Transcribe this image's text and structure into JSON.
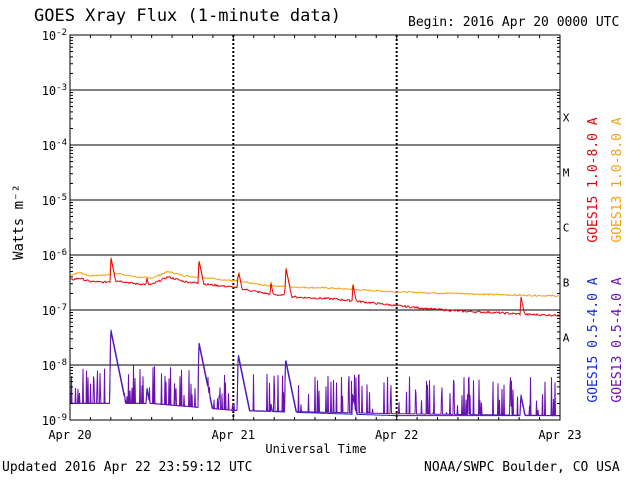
{
  "header": {
    "title": "GOES Xray Flux (1-minute data)",
    "begin": "Begin:  2016 Apr 20 0000 UTC"
  },
  "footer": {
    "updated": "Updated 2016 Apr 22 23:59:12 UTC",
    "credit": "NOAA/SWPC Boulder, CO USA"
  },
  "chart_data": {
    "type": "line",
    "title": "GOES Xray Flux (1-minute data)",
    "xlabel": "Universal Time",
    "ylabel": "Watts m⁻²",
    "yscale": "log",
    "ylim": [
      1e-09,
      0.01
    ],
    "xlim_days": [
      0,
      3
    ],
    "x_ticks": [
      {
        "day": 0,
        "label": "Apr 20"
      },
      {
        "day": 1,
        "label": "Apr 21"
      },
      {
        "day": 2,
        "label": "Apr 22"
      },
      {
        "day": 3,
        "label": "Apr 23"
      }
    ],
    "y_ticks": [
      {
        "exp": -9,
        "label": "10",
        "sup": "-9"
      },
      {
        "exp": -8,
        "label": "10",
        "sup": "-8"
      },
      {
        "exp": -7,
        "label": "10",
        "sup": "-7"
      },
      {
        "exp": -6,
        "label": "10",
        "sup": "-6"
      },
      {
        "exp": -5,
        "label": "10",
        "sup": "-5"
      },
      {
        "exp": -4,
        "label": "10",
        "sup": "-4"
      },
      {
        "exp": -3,
        "label": "10",
        "sup": "-3"
      },
      {
        "exp": -2,
        "label": "10",
        "sup": "-2"
      }
    ],
    "flare_classes": [
      {
        "label": "A",
        "band": [
          -8,
          -7
        ]
      },
      {
        "label": "B",
        "band": [
          -7,
          -6
        ]
      },
      {
        "label": "C",
        "band": [
          -6,
          -5
        ]
      },
      {
        "label": "M",
        "band": [
          -5,
          -4
        ]
      },
      {
        "label": "X",
        "band": [
          -4,
          -3
        ]
      }
    ],
    "grid": true,
    "legend_position": "right, rotated",
    "series": [
      {
        "name": "GOES15 1.0-8.0 A",
        "color": "#e8000b",
        "x": [
          0,
          0.06,
          0.12,
          0.2,
          0.3,
          0.4,
          0.5,
          0.6,
          0.7,
          0.85,
          1.0,
          1.2,
          1.4,
          1.6,
          1.8,
          2.0,
          2.2,
          2.4,
          2.6,
          2.8,
          3.0
        ],
        "y": [
          3.5e-07,
          3.8e-07,
          3.3e-07,
          3.2e-07,
          3.4e-07,
          3e-07,
          2.9e-07,
          4e-07,
          3.3e-07,
          2.9e-07,
          2.6e-07,
          2e-07,
          1.7e-07,
          1.6e-07,
          1.4e-07,
          1.2e-07,
          1.05e-07,
          9.5e-08,
          9e-08,
          8.3e-08,
          8e-08
        ]
      },
      {
        "name": "GOES13 1.0-8.0 A",
        "color": "#f5a20a",
        "x": [
          0,
          0.06,
          0.12,
          0.2,
          0.3,
          0.4,
          0.5,
          0.6,
          0.7,
          0.85,
          1.0,
          1.2,
          1.4,
          1.6,
          1.8,
          2.0,
          2.2,
          2.4,
          2.6,
          2.8,
          3.0
        ],
        "y": [
          4.3e-07,
          4.8e-07,
          4.2e-07,
          4.3e-07,
          4.6e-07,
          4e-07,
          3.8e-07,
          5e-07,
          4.2e-07,
          3.8e-07,
          3.4e-07,
          2.8e-07,
          2.6e-07,
          2.5e-07,
          2.3e-07,
          2.15e-07,
          2.05e-07,
          2e-07,
          1.9e-07,
          1.85e-07,
          1.8e-07
        ]
      },
      {
        "name": "GOES15 0.5-4.0 A",
        "color": "#1028e0",
        "x": [
          0,
          0.2,
          0.5,
          1.0,
          2.0,
          3.0
        ],
        "y": [
          2e-09,
          2e-09,
          2e-09,
          1.5e-09,
          1.2e-09,
          1.2e-09
        ]
      },
      {
        "name": "GOES13 0.5-4.0 A",
        "color": "#6a0fb0",
        "x": [
          0,
          0.2,
          0.5,
          1.0,
          2.0,
          3.0
        ],
        "y": [
          2e-09,
          2e-09,
          2e-09,
          1.5e-09,
          1.3e-09,
          1.2e-09
        ]
      }
    ],
    "flares": [
      {
        "day": 0.25,
        "long_peak": 9e-07,
        "short_peak": 4.5e-08
      },
      {
        "day": 0.47,
        "long_peak": 4e-07,
        "short_peak": 4e-09
      },
      {
        "day": 0.79,
        "long_peak": 7.8e-07,
        "short_peak": 2.6e-08
      },
      {
        "day": 1.03,
        "long_peak": 5.3e-07,
        "short_peak": 1.6e-08
      },
      {
        "day": 1.23,
        "long_peak": 3.1e-07,
        "short_peak": 2e-09
      },
      {
        "day": 1.32,
        "long_peak": 6.1e-07,
        "short_peak": 1.3e-08
      },
      {
        "day": 1.73,
        "long_peak": 3.1e-07,
        "short_peak": 3e-09
      },
      {
        "day": 2.76,
        "long_peak": 1.8e-07,
        "short_peak": 3e-09
      }
    ]
  }
}
